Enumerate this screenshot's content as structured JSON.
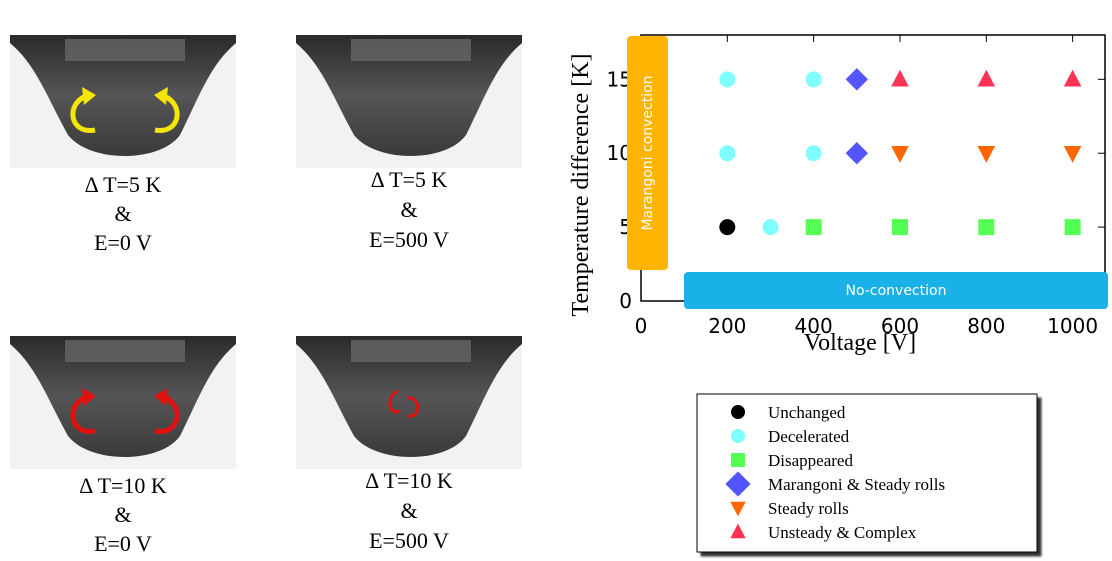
{
  "panels": [
    {
      "caption": [
        "Δ T=5 K",
        "&",
        "E=0 V"
      ]
    },
    {
      "caption": [
        "Δ T=5 K",
        "&",
        "E=500 V"
      ]
    },
    {
      "caption": [
        "Δ T=10 K",
        "&",
        "E=0 V"
      ]
    },
    {
      "caption": [
        "Δ T=10 K",
        "&",
        "E=500 V"
      ]
    }
  ],
  "chart_data": {
    "type": "scatter",
    "x_label": "Voltage [V]",
    "y_label": "Temperature difference [K]",
    "xlim": [
      0,
      1075
    ],
    "ylim": [
      0,
      18
    ],
    "xticks": [
      0,
      200,
      400,
      600,
      800,
      1000
    ],
    "yticks": [
      0,
      5,
      10,
      15
    ],
    "annotations": [
      "Marangoni convection",
      "No-convection"
    ],
    "series": [
      {
        "name": "Unchanged",
        "color": "#000000",
        "marker": "circle",
        "x": [
          200
        ],
        "y": [
          5
        ]
      },
      {
        "name": "Decelerated",
        "color": "#7fffff",
        "marker": "circle",
        "x": [
          200,
          400,
          200,
          400,
          300
        ],
        "y": [
          15,
          15,
          10,
          10,
          5
        ]
      },
      {
        "name": "Disappeared",
        "color": "#55ff55",
        "marker": "square",
        "x": [
          400,
          600,
          800,
          1000
        ],
        "y": [
          5,
          5,
          5,
          5
        ]
      },
      {
        "name": "Marangoni & Steady rolls",
        "color": "#5555ff",
        "marker": "diamond",
        "x": [
          500,
          500
        ],
        "y": [
          15,
          10
        ]
      },
      {
        "name": "Steady rolls",
        "color": "#ff6600",
        "marker": "triangle-down",
        "x": [
          600,
          800,
          1000
        ],
        "y": [
          10,
          10,
          10
        ]
      },
      {
        "name": "Unsteady & Complex",
        "color": "#ff3355",
        "marker": "triangle-up",
        "x": [
          600,
          800,
          1000
        ],
        "y": [
          15,
          15,
          15
        ]
      }
    ]
  }
}
